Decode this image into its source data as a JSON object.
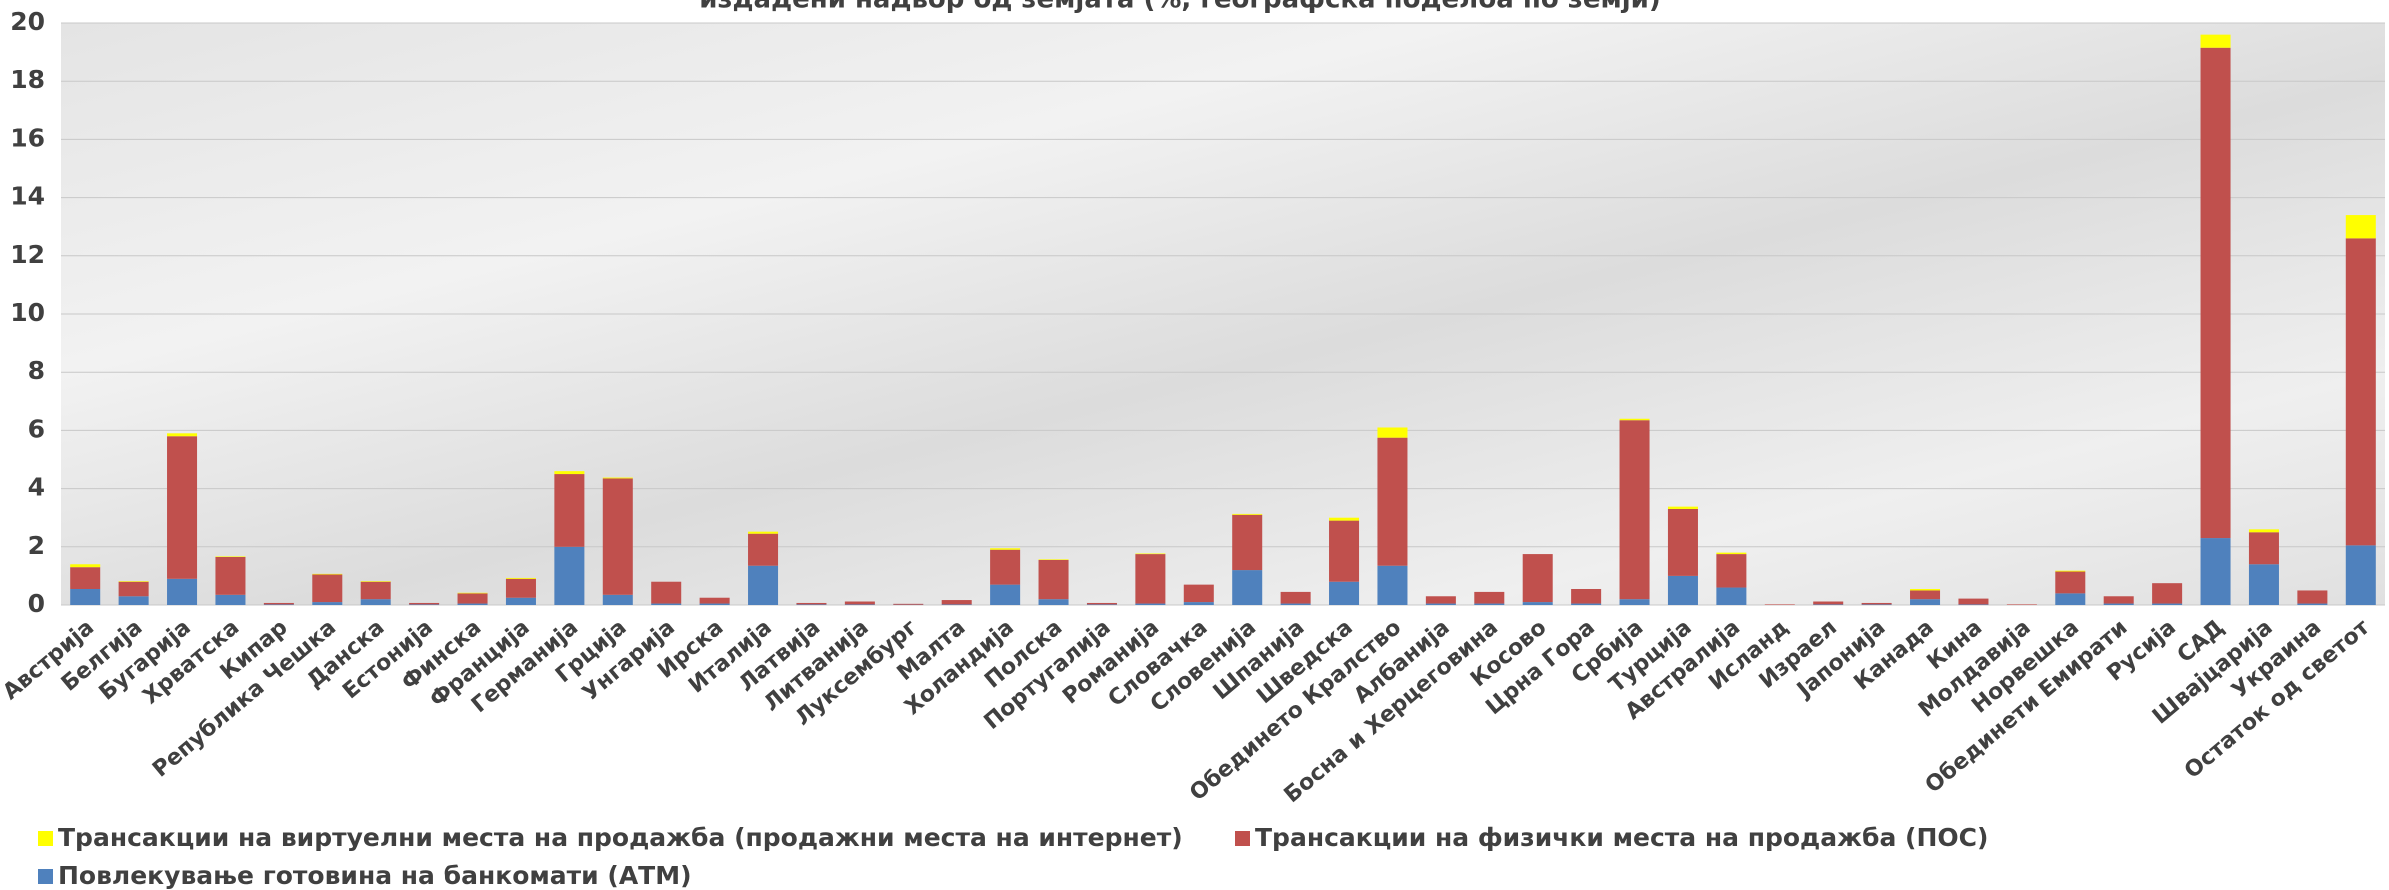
{
  "chart_data": {
    "type": "stacked_bar",
    "title": "издадени надвор од земјата (%, географска поделба по земји)",
    "categories": [
      "Австрија",
      "Белгија",
      "Бугарија",
      "Хрватска",
      "Кипар",
      "Република Чешка",
      "Данска",
      "Естонија",
      "Финска",
      "Франција",
      "Германија",
      "Грција",
      "Унгарија",
      "Ирска",
      "Италија",
      "Латвија",
      "Литванија",
      "Луксембург",
      "Малта",
      "Холандија",
      "Полска",
      "Португалија",
      "Романија",
      "Словачка",
      "Словенија",
      "Шпанија",
      "Шведска",
      "Обединето Кралство",
      "Албанија",
      "Босна и Херцеговина",
      "Косово",
      "Црна Гора",
      "Србија",
      "Турција",
      "Австралија",
      "Исланд",
      "Израел",
      "Јапонија",
      "Канада",
      "Кина",
      "Молдавија",
      "Норвешка",
      "Обединети Емирати",
      "Русија",
      "САД",
      "Швајцарија",
      "Украина",
      "Остаток од светот"
    ],
    "series": [
      {
        "name": "Повлекување готовина на банкомати (АТМ)",
        "color": "#4f81bd",
        "values": [
          0.55,
          0.3,
          0.9,
          0.35,
          0.02,
          0.1,
          0.2,
          0.02,
          0.05,
          0.25,
          2.0,
          0.35,
          0.05,
          0.05,
          1.35,
          0.02,
          0.02,
          0.01,
          0.02,
          0.7,
          0.2,
          0.02,
          0.05,
          0.1,
          1.2,
          0.05,
          0.8,
          1.35,
          0.05,
          0.05,
          0.1,
          0.05,
          0.2,
          1.0,
          0.6,
          0,
          0.02,
          0.02,
          0.2,
          0.02,
          0,
          0.4,
          0.05,
          0.05,
          2.3,
          1.4,
          0.05,
          2.05
        ]
      },
      {
        "name": "Трансакции на физички места на продажба (ПОС)",
        "color": "#c0504d",
        "values": [
          0.75,
          0.5,
          4.9,
          1.3,
          0.05,
          0.95,
          0.6,
          0.05,
          0.35,
          0.65,
          2.5,
          4.0,
          0.75,
          0.2,
          1.1,
          0.05,
          0.1,
          0.03,
          0.15,
          1.2,
          1.35,
          0.05,
          1.7,
          0.6,
          1.9,
          0.4,
          2.1,
          4.4,
          0.25,
          0.4,
          1.65,
          0.5,
          6.15,
          2.3,
          1.15,
          0.02,
          0.1,
          0.05,
          0.3,
          0.2,
          0.02,
          0.75,
          0.25,
          0.7,
          16.85,
          1.1,
          0.45,
          10.55
        ]
      },
      {
        "name": "Трансакции на виртуелни места на продажба (продажни места на интернет)",
        "color": "#ffff00",
        "values": [
          0.1,
          0.02,
          0.1,
          0.02,
          0,
          0.02,
          0.02,
          0,
          0.02,
          0.03,
          0.1,
          0.03,
          0,
          0,
          0.07,
          0,
          0,
          0,
          0,
          0.05,
          0.02,
          0,
          0.02,
          0,
          0.03,
          0,
          0.1,
          0.35,
          0,
          0,
          0,
          0,
          0.05,
          0.08,
          0.05,
          0,
          0,
          0,
          0.05,
          0,
          0,
          0.03,
          0,
          0,
          0.45,
          0.1,
          0,
          0.8
        ]
      }
    ],
    "ylim": [
      0,
      20
    ],
    "yticks": [
      0,
      2,
      4,
      6,
      8,
      10,
      12,
      14,
      16,
      18,
      20
    ],
    "grid": true
  }
}
